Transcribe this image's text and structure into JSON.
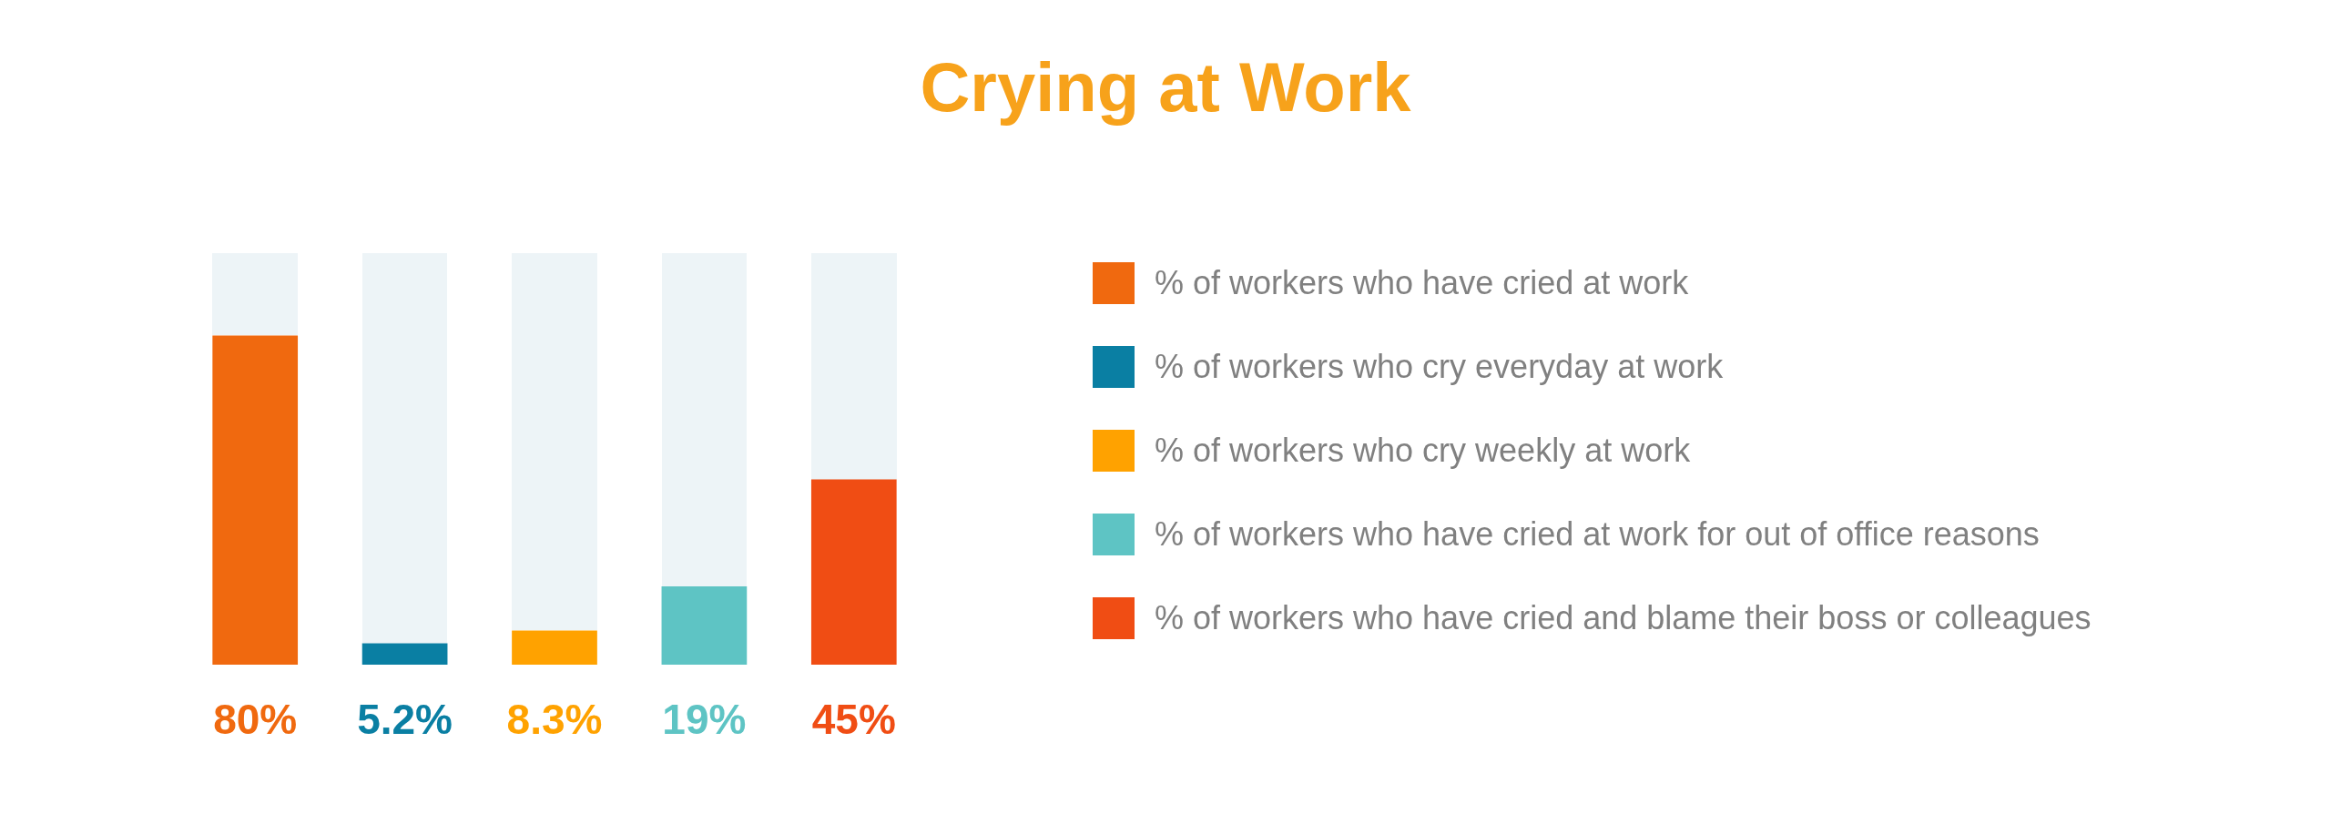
{
  "chart_data": {
    "type": "bar",
    "title": "Crying at Work",
    "categories": [
      null,
      null,
      null,
      null,
      null
    ],
    "stacked": true,
    "series": [
      {
        "name": "% of workers who have cried at work",
        "color": "#f0690f",
        "values": [
          80,
          null,
          null,
          null,
          null
        ],
        "value_labels": [
          "80%",
          null,
          null,
          null,
          null
        ]
      },
      {
        "name": "% of workers who cry everyday at work",
        "color": "#0a7fa3",
        "values": [
          null,
          5.2,
          null,
          null,
          null
        ],
        "value_labels": [
          null,
          "5.2%",
          null,
          null,
          null
        ]
      },
      {
        "name": "% of workers who cry weekly at work",
        "color": "#ffa200",
        "values": [
          null,
          null,
          8.3,
          null,
          null
        ],
        "value_labels": [
          null,
          null,
          "8.3%",
          null,
          null
        ]
      },
      {
        "name": "% of workers who have cried at work for out of office reasons",
        "color": "#5ec4c4",
        "values": [
          null,
          null,
          null,
          19,
          null
        ],
        "value_labels": [
          null,
          null,
          null,
          "19%",
          null
        ]
      },
      {
        "name": "% of workers who have cried and blame their boss or colleagues",
        "color": "#f04d14",
        "values": [
          null,
          null,
          null,
          null,
          45
        ],
        "value_labels": [
          null,
          null,
          null,
          null,
          "45%"
        ]
      }
    ],
    "ylim": [
      0,
      100
    ],
    "tick_labels": false,
    "grid": false,
    "legend": "right"
  }
}
